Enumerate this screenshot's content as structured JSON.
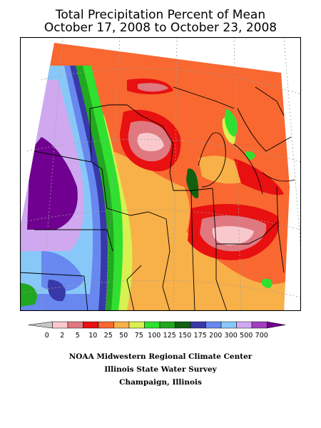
{
  "title": {
    "line1": "Total Precipitation Percent of Mean",
    "line2": "October 17, 2008 to October 23, 2008"
  },
  "legend": {
    "bins": [
      {
        "label": "0",
        "color": "#c8c8c8"
      },
      {
        "label": "2",
        "color": "#f8c8cc"
      },
      {
        "label": "5",
        "color": "#e07880"
      },
      {
        "label": "10",
        "color": "#e81010"
      },
      {
        "label": "25",
        "color": "#f86830"
      },
      {
        "label": "50",
        "color": "#f8b048"
      },
      {
        "label": "75",
        "color": "#d8f050"
      },
      {
        "label": "100",
        "color": "#30e030"
      },
      {
        "label": "125",
        "color": "#20a820"
      },
      {
        "label": "150",
        "color": "#106010"
      },
      {
        "label": "175",
        "color": "#3838a8"
      },
      {
        "label": "200",
        "color": "#6888f0"
      },
      {
        "label": "300",
        "color": "#88c8f8"
      },
      {
        "label": "500",
        "color": "#d0a8f0"
      },
      {
        "label": "700",
        "color": "#a040c0"
      },
      {
        "label": "",
        "color": "#700090"
      }
    ]
  },
  "credits": {
    "line1": "NOAA Midwestern Regional Climate Center",
    "line2": "Illinois State Water Survey",
    "line3": "Champaign, Illinois"
  },
  "colors": {
    "background": "#ffffff",
    "frame": "#000000",
    "state_lines": "#000000",
    "lat_lon_grid": "#a0a0a0"
  }
}
